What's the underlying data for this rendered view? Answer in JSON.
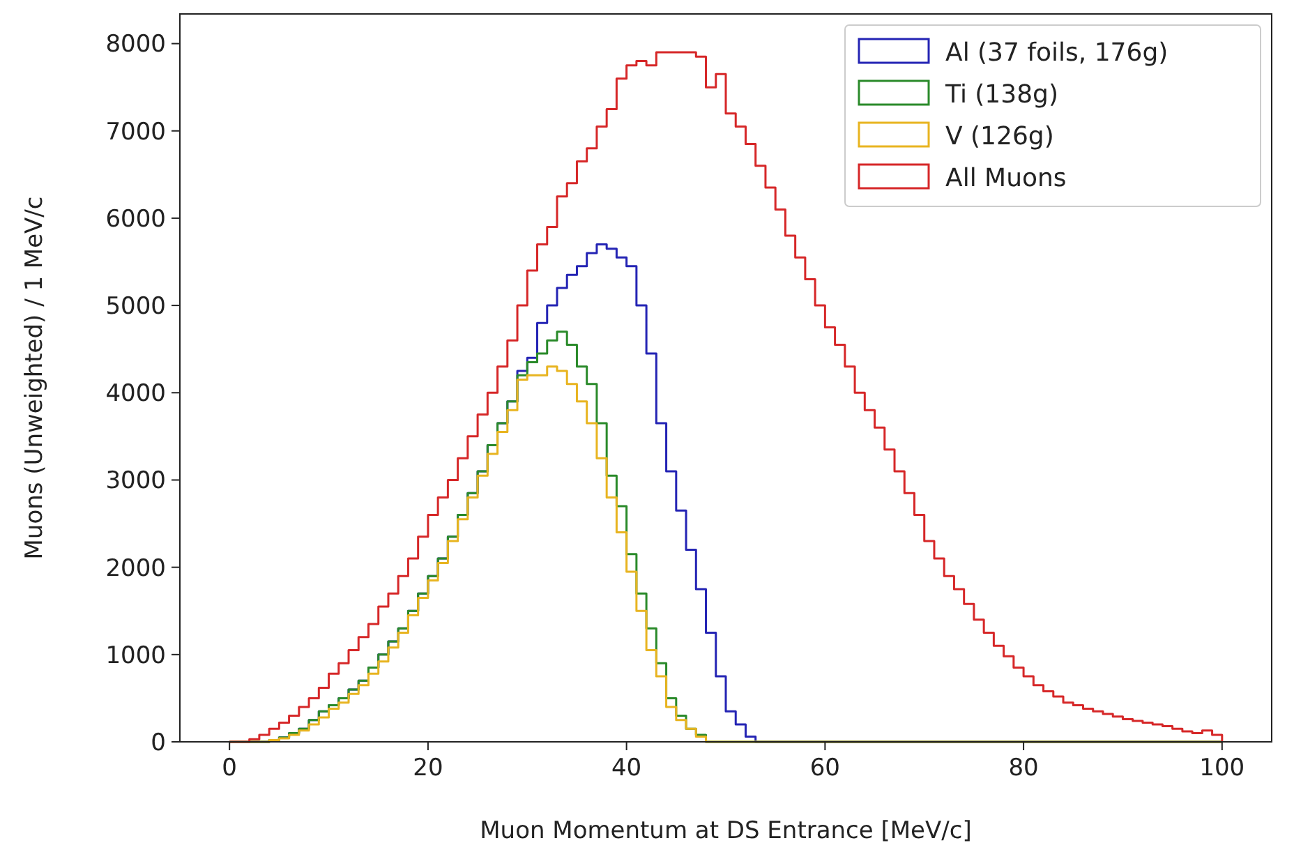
{
  "chart_data": {
    "type": "histogram",
    "xlabel": "Muon Momentum at DS Entrance [MeV/c]",
    "ylabel": "Muons (Unweighted) / 1 MeV/c",
    "bins": [
      0,
      1,
      2,
      3,
      4,
      5,
      6,
      7,
      8,
      9,
      10,
      11,
      12,
      13,
      14,
      15,
      16,
      17,
      18,
      19,
      20,
      21,
      22,
      23,
      24,
      25,
      26,
      27,
      28,
      29,
      30,
      31,
      32,
      33,
      34,
      35,
      36,
      37,
      38,
      39,
      40,
      41,
      42,
      43,
      44,
      45,
      46,
      47,
      48,
      49,
      50,
      51,
      52,
      53,
      54,
      55,
      56,
      57,
      58,
      59,
      60,
      61,
      62,
      63,
      64,
      65,
      66,
      67,
      68,
      69,
      70,
      71,
      72,
      73,
      74,
      75,
      76,
      77,
      78,
      79,
      80,
      81,
      82,
      83,
      84,
      85,
      86,
      87,
      88,
      89,
      90,
      91,
      92,
      93,
      94,
      95,
      96,
      97,
      98,
      99,
      100
    ],
    "series": [
      {
        "name": "Al (37 foils, 176g)",
        "color": "#2424b4",
        "values": [
          0,
          0,
          0,
          0,
          20,
          50,
          100,
          150,
          250,
          350,
          420,
          500,
          600,
          700,
          850,
          1000,
          1150,
          1300,
          1500,
          1700,
          1900,
          2100,
          2350,
          2600,
          2850,
          3100,
          3400,
          3650,
          3900,
          4250,
          4400,
          4800,
          5000,
          5200,
          5350,
          5450,
          5600,
          5700,
          5650,
          5550,
          5450,
          5000,
          4450,
          3650,
          3100,
          2650,
          2200,
          1750,
          1250,
          750,
          350,
          200,
          60,
          0,
          0,
          0,
          0,
          0,
          0,
          0,
          0,
          0,
          0,
          0,
          0,
          0,
          0,
          0,
          0,
          0,
          0,
          0,
          0,
          0,
          0,
          0,
          0,
          0,
          0,
          0,
          0,
          0,
          0,
          0,
          0,
          0,
          0,
          0,
          0,
          0,
          0,
          0,
          0,
          0,
          0,
          0,
          0,
          0,
          0,
          0
        ]
      },
      {
        "name": "Ti (138g)",
        "color": "#2a8a2a",
        "values": [
          0,
          0,
          0,
          0,
          20,
          50,
          100,
          150,
          250,
          350,
          420,
          500,
          600,
          700,
          850,
          1000,
          1150,
          1300,
          1500,
          1700,
          1900,
          2100,
          2350,
          2600,
          2850,
          3100,
          3400,
          3650,
          3900,
          4200,
          4350,
          4450,
          4600,
          4700,
          4550,
          4300,
          4100,
          3650,
          3050,
          2700,
          2150,
          1700,
          1300,
          900,
          500,
          300,
          150,
          80,
          0,
          0,
          0,
          0,
          0,
          0,
          0,
          0,
          0,
          0,
          0,
          0,
          0,
          0,
          0,
          0,
          0,
          0,
          0,
          0,
          0,
          0,
          0,
          0,
          0,
          0,
          0,
          0,
          0,
          0,
          0,
          0,
          0,
          0,
          0,
          0,
          0,
          0,
          0,
          0,
          0,
          0,
          0,
          0,
          0,
          0,
          0,
          0,
          0,
          0,
          0,
          0
        ]
      },
      {
        "name": "V (126g)",
        "color": "#e8b420",
        "values": [
          0,
          0,
          0,
          0,
          20,
          40,
          80,
          130,
          200,
          280,
          380,
          450,
          550,
          650,
          780,
          920,
          1080,
          1250,
          1450,
          1650,
          1850,
          2050,
          2300,
          2550,
          2800,
          3050,
          3300,
          3550,
          3800,
          4150,
          4200,
          4200,
          4300,
          4250,
          4100,
          3900,
          3650,
          3250,
          2800,
          2400,
          1950,
          1500,
          1050,
          750,
          400,
          250,
          150,
          60,
          0,
          0,
          0,
          0,
          0,
          0,
          0,
          0,
          0,
          0,
          0,
          0,
          0,
          0,
          0,
          0,
          0,
          0,
          0,
          0,
          0,
          0,
          0,
          0,
          0,
          0,
          0,
          0,
          0,
          0,
          0,
          0,
          0,
          0,
          0,
          0,
          0,
          0,
          0,
          0,
          0,
          0,
          0,
          0,
          0,
          0,
          0,
          0,
          0,
          0,
          0,
          0
        ]
      },
      {
        "name": "All Muons",
        "color": "#d62728",
        "values": [
          0,
          0,
          30,
          80,
          150,
          220,
          300,
          400,
          500,
          620,
          780,
          900,
          1050,
          1200,
          1350,
          1550,
          1700,
          1900,
          2100,
          2350,
          2600,
          2800,
          3000,
          3250,
          3500,
          3750,
          4000,
          4300,
          4600,
          5000,
          5400,
          5700,
          5900,
          6250,
          6400,
          6650,
          6800,
          7050,
          7250,
          7600,
          7750,
          7800,
          7750,
          7900,
          7900,
          7900,
          7900,
          7850,
          7500,
          7650,
          7200,
          7050,
          6850,
          6600,
          6350,
          6100,
          5800,
          5550,
          5300,
          5000,
          4750,
          4550,
          4300,
          4000,
          3800,
          3600,
          3350,
          3100,
          2850,
          2600,
          2300,
          2100,
          1900,
          1750,
          1580,
          1400,
          1250,
          1100,
          980,
          850,
          750,
          650,
          580,
          520,
          450,
          420,
          380,
          350,
          320,
          290,
          260,
          240,
          220,
          200,
          180,
          150,
          120,
          100,
          130,
          80
        ]
      }
    ],
    "xlim": [
      -5,
      105
    ],
    "xticks": [
      0,
      20,
      40,
      60,
      80,
      100
    ],
    "ylim": [
      0,
      8340
    ],
    "yticks": [
      0,
      1000,
      2000,
      3000,
      4000,
      5000,
      6000,
      7000,
      8000
    ],
    "grid": false,
    "legend": "top right"
  }
}
